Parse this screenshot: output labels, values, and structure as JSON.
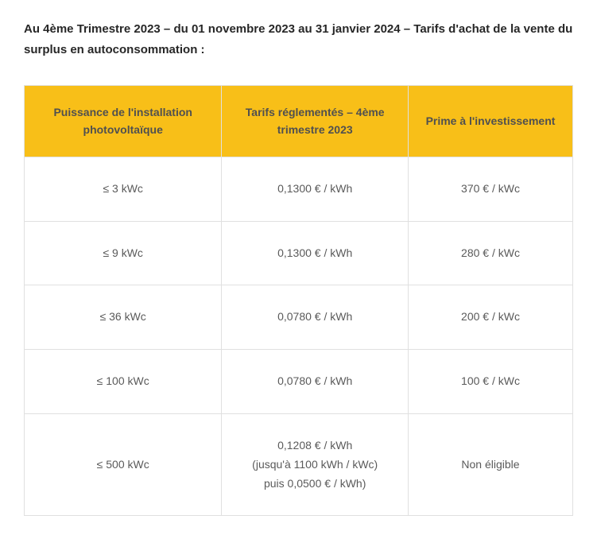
{
  "title": "Au 4ème Trimestre 2023 – du 01 novembre 2023 au 31 janvier 2024 – Tarifs d'achat de la vente du surplus en autoconsommation :",
  "table": {
    "header_bg": "#f8bf18",
    "border_color": "#e0e0e0",
    "header_text_color": "#505050",
    "cell_text_color": "#5a5a5a",
    "font_family": "Arial",
    "header_fontsize": 14,
    "cell_fontsize": 14,
    "columns": [
      "Puissance de l'installation photovoltaïque",
      "Tarifs réglementés – 4ème trimestre 2023",
      "Prime à l'investissement"
    ],
    "rows": [
      {
        "power": "≤ 3 kWc",
        "tarif": "0,1300 € / kWh",
        "prime": "370 € / kWc"
      },
      {
        "power": "≤ 9 kWc",
        "tarif": "0,1300 € / kWh",
        "prime": "280 € / kWc"
      },
      {
        "power": "≤ 36 kWc",
        "tarif": "0,0780 € / kWh",
        "prime": "200 € / kWc"
      },
      {
        "power": "≤ 100 kWc",
        "tarif": "0,0780 € / kWh",
        "prime": "100 € / kWc"
      },
      {
        "power": "≤ 500 kWc",
        "tarif": "0,1208 € / kWh\n(jusqu'à 1100 kWh / kWc)\npuis 0,0500 € / kWh)",
        "prime": "Non éligible"
      }
    ]
  }
}
